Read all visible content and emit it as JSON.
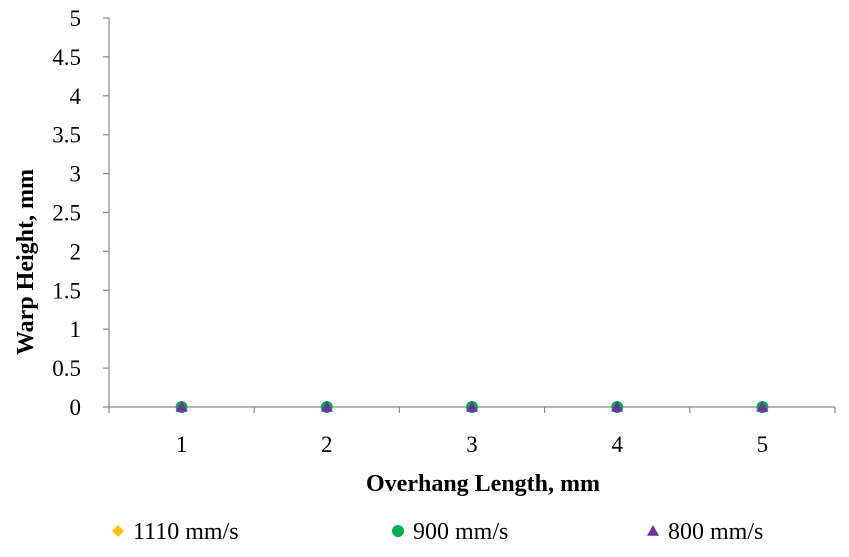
{
  "chart_data": {
    "type": "scatter",
    "title": "",
    "xlabel": "Overhang Length, mm",
    "ylabel": "Warp Height, mm",
    "categories": [
      "1",
      "2",
      "3",
      "4",
      "5"
    ],
    "ylim": [
      0,
      5
    ],
    "yticks": [
      "0",
      "0.5",
      "1",
      "1.5",
      "2",
      "2.5",
      "3",
      "3.5",
      "4",
      "4.5",
      "5"
    ],
    "grid": false,
    "legend_position": "bottom",
    "series": [
      {
        "name": "1110 mm/s",
        "marker": "diamond",
        "color": "#FFC000",
        "values": [
          0,
          0,
          0,
          0,
          0
        ]
      },
      {
        "name": "900 mm/s",
        "marker": "circle",
        "color": "#00B050",
        "values": [
          0,
          0,
          0,
          0,
          0
        ]
      },
      {
        "name": "800 mm/s",
        "marker": "triangle",
        "color": "#7030A0",
        "values": [
          0,
          0,
          0,
          0,
          0
        ]
      }
    ]
  }
}
